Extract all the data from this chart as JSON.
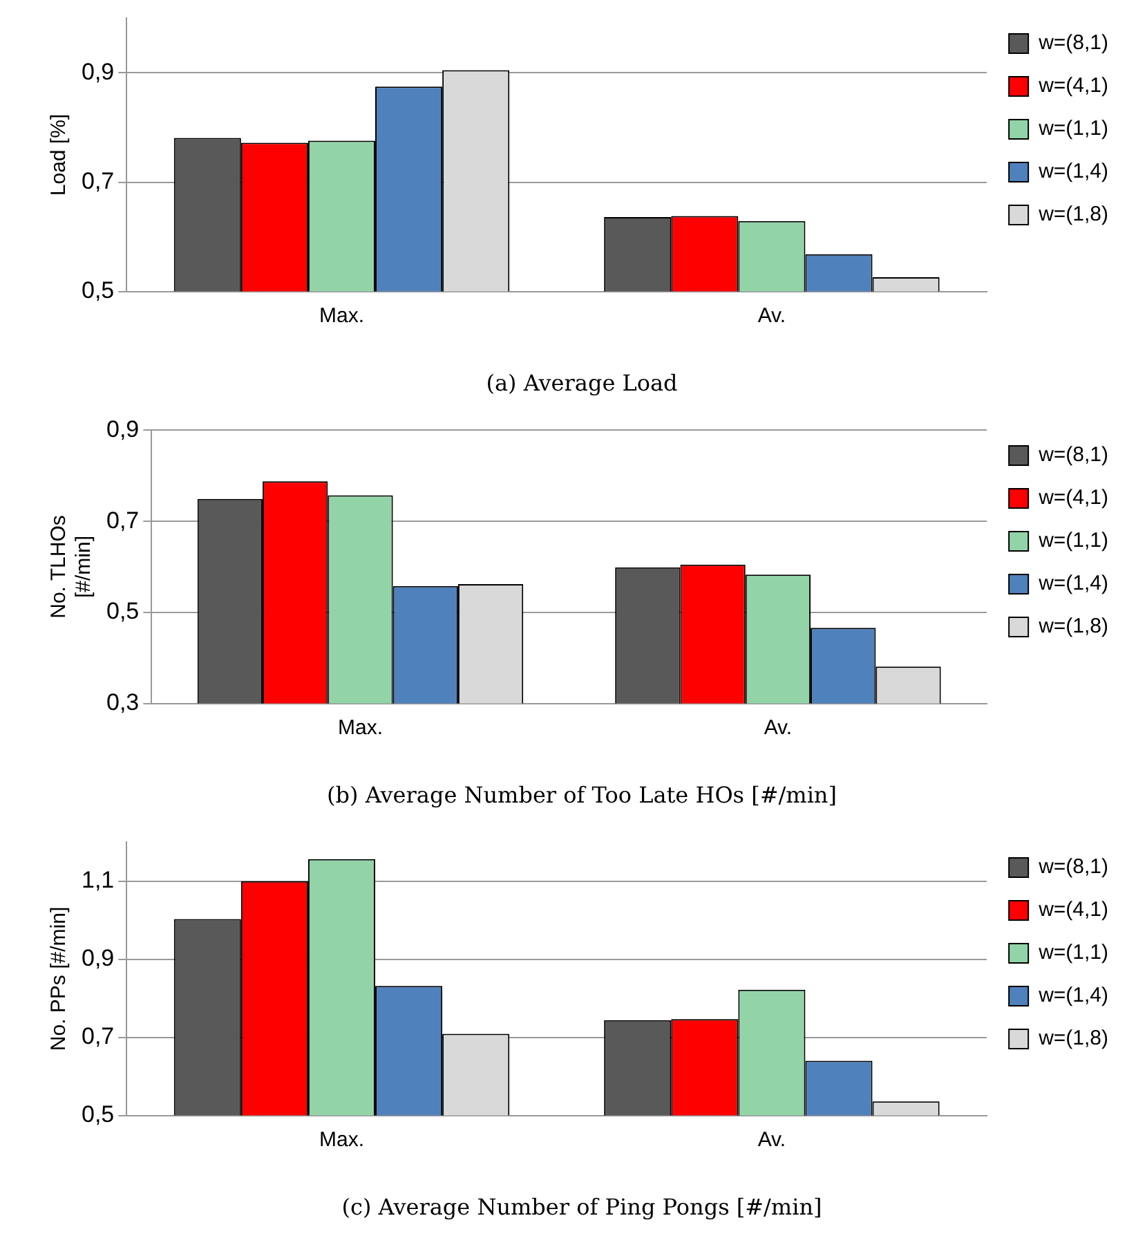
{
  "chart_data": [
    {
      "type": "bar",
      "title": "(a) Average Load",
      "ylabel": "Load [%]",
      "categories": [
        "Max.",
        "Av."
      ],
      "series": [
        {
          "name": "w=(8,1)",
          "color": "#595959",
          "values": [
            0.781,
            0.636
          ]
        },
        {
          "name": "w=(4,1)",
          "color": "#ff0000",
          "values": [
            0.772,
            0.638
          ]
        },
        {
          "name": "w=(1,1)",
          "color": "#92d4a8",
          "values": [
            0.776,
            0.629
          ]
        },
        {
          "name": "w=(1,4)",
          "color": "#4f81bd",
          "values": [
            0.875,
            0.568
          ]
        },
        {
          "name": "w=(1,8)",
          "color": "#d9d9d9",
          "values": [
            0.905,
            0.526
          ]
        }
      ],
      "ylim": [
        0.5,
        1.0
      ],
      "yticks": [
        {
          "value": 0.5,
          "label": "0,5"
        },
        {
          "value": 0.7,
          "label": "0,7"
        },
        {
          "value": 0.9,
          "label": "0,9"
        }
      ],
      "grid": "y",
      "legend": "right"
    },
    {
      "type": "bar",
      "title": "(b) Average Number of Too Late HOs [#/min]",
      "ylabel": "No. TLHOs [#/min]",
      "categories": [
        "Max.",
        "Av."
      ],
      "series": [
        {
          "name": "w=(8,1)",
          "color": "#595959",
          "values": [
            0.749,
            0.599
          ]
        },
        {
          "name": "w=(4,1)",
          "color": "#ff0000",
          "values": [
            0.788,
            0.605
          ]
        },
        {
          "name": "w=(1,1)",
          "color": "#92d4a8",
          "values": [
            0.757,
            0.583
          ]
        },
        {
          "name": "w=(1,4)",
          "color": "#4f81bd",
          "values": [
            0.558,
            0.466
          ]
        },
        {
          "name": "w=(1,8)",
          "color": "#d9d9d9",
          "values": [
            0.562,
            0.381
          ]
        }
      ],
      "ylim": [
        0.3,
        0.9
      ],
      "yticks": [
        {
          "value": 0.3,
          "label": "0,3"
        },
        {
          "value": 0.5,
          "label": "0,5"
        },
        {
          "value": 0.7,
          "label": "0,7"
        },
        {
          "value": 0.9,
          "label": "0,9"
        }
      ],
      "grid": "y",
      "legend": "right"
    },
    {
      "type": "bar",
      "title": "(c) Average Number of Ping Pongs [#/min]",
      "ylabel": "No. PPs [#/min]",
      "categories": [
        "Max.",
        "Av."
      ],
      "series": [
        {
          "name": "w=(8,1)",
          "color": "#595959",
          "values": [
            1.003,
            0.744
          ]
        },
        {
          "name": "w=(4,1)",
          "color": "#ff0000",
          "values": [
            1.1,
            0.747
          ]
        },
        {
          "name": "w=(1,1)",
          "color": "#92d4a8",
          "values": [
            1.157,
            0.822
          ]
        },
        {
          "name": "w=(1,4)",
          "color": "#4f81bd",
          "values": [
            0.832,
            0.64
          ]
        },
        {
          "name": "w=(1,8)",
          "color": "#d9d9d9",
          "values": [
            0.709,
            0.536
          ]
        }
      ],
      "ylim": [
        0.5,
        1.2
      ],
      "yticks": [
        {
          "value": 0.5,
          "label": "0,5"
        },
        {
          "value": 0.7,
          "label": "0,7"
        },
        {
          "value": 0.9,
          "label": "0,9"
        },
        {
          "value": 1.1,
          "label": "1,1"
        }
      ],
      "grid": "y",
      "legend": "right"
    }
  ]
}
